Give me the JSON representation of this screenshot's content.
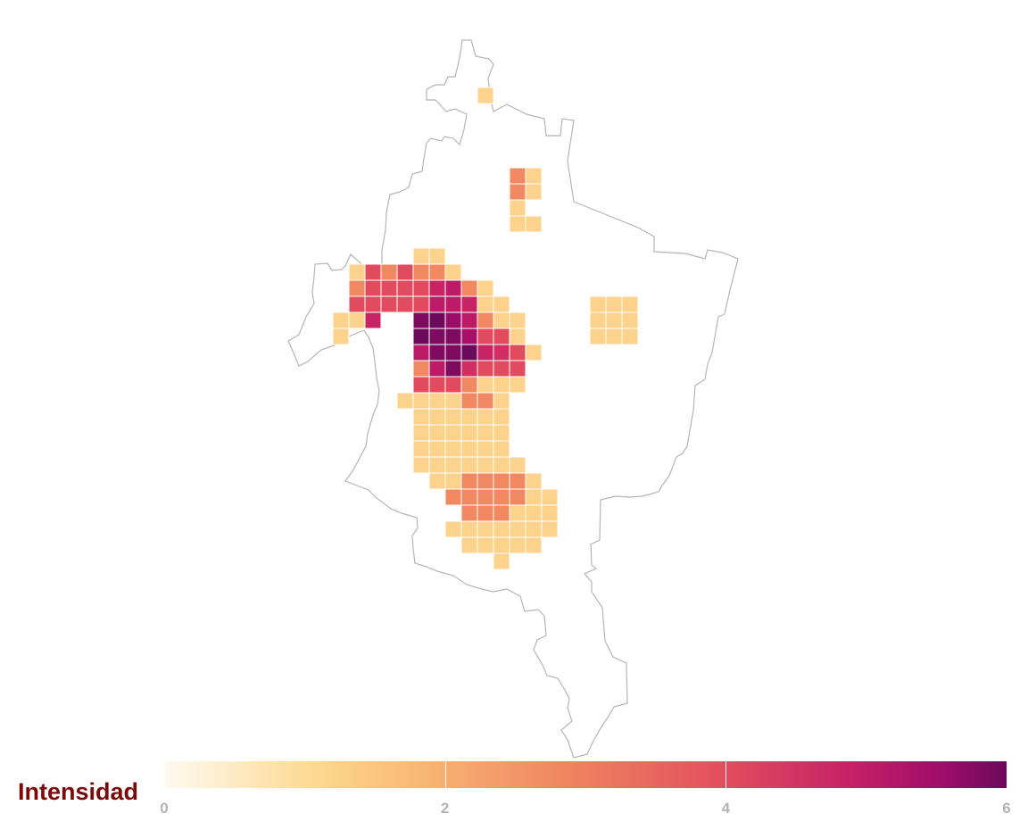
{
  "legend": {
    "title": "Intensidad",
    "min": 0,
    "max": 6,
    "ticks": [
      {
        "value": 0,
        "label": "0"
      },
      {
        "value": 2,
        "label": "2"
      },
      {
        "value": 4,
        "label": "4"
      },
      {
        "value": 6,
        "label": "6"
      }
    ]
  },
  "colors": {
    "outline": "#b5b5b5",
    "scale": [
      "#fffaf0",
      "#fdd890",
      "#f8b575",
      "#ef8460",
      "#e24f5d",
      "#c51f66",
      "#a00d6a",
      "#6b0a5a"
    ]
  },
  "grid": {
    "rows": [
      {
        "row": 0,
        "cells": [
          [
            6,
            1
          ]
        ]
      },
      {
        "row": 5,
        "cells": [
          [
            8,
            2.5
          ],
          [
            9,
            1
          ]
        ]
      },
      {
        "row": 6,
        "cells": [
          [
            8,
            2.5
          ],
          [
            9,
            1
          ]
        ]
      },
      {
        "row": 7,
        "cells": [
          [
            8,
            1
          ]
        ]
      },
      {
        "row": 8,
        "cells": [
          [
            8,
            1
          ],
          [
            9,
            1
          ]
        ]
      },
      {
        "row": 10,
        "cells": [
          [
            2,
            1
          ],
          [
            3,
            1
          ]
        ]
      },
      {
        "row": 11,
        "cells": [
          [
            -2,
            1
          ],
          [
            -1,
            3.5
          ],
          [
            0,
            2.5
          ],
          [
            1,
            3.5
          ],
          [
            2,
            2.5
          ],
          [
            3,
            2.5
          ],
          [
            4,
            1
          ]
        ]
      },
      {
        "row": 12,
        "cells": [
          [
            -2,
            2.5
          ],
          [
            -1,
            3.5
          ],
          [
            0,
            3.5
          ],
          [
            1,
            3.5
          ],
          [
            2,
            3.5
          ],
          [
            3,
            4.2
          ],
          [
            4,
            4.5
          ],
          [
            5,
            2.5
          ],
          [
            6,
            1
          ]
        ]
      },
      {
        "row": 13,
        "cells": [
          [
            -2,
            3.5
          ],
          [
            -1,
            3.5
          ],
          [
            0,
            3.5
          ],
          [
            1,
            3.5
          ],
          [
            2,
            3.5
          ],
          [
            3,
            4.5
          ],
          [
            4,
            4.5
          ],
          [
            5,
            4.2
          ],
          [
            6,
            1
          ],
          [
            7,
            1
          ],
          [
            13,
            1
          ],
          [
            14,
            1
          ],
          [
            15,
            1
          ]
        ]
      },
      {
        "row": 14,
        "cells": [
          [
            -3,
            1
          ],
          [
            -2,
            1
          ],
          [
            -1,
            4.2
          ],
          [
            2,
            5.7
          ],
          [
            3,
            6
          ],
          [
            4,
            5.2
          ],
          [
            5,
            4.5
          ],
          [
            6,
            2.5
          ],
          [
            7,
            1
          ],
          [
            8,
            1
          ],
          [
            13,
            1
          ],
          [
            14,
            1
          ],
          [
            15,
            1
          ]
        ]
      },
      {
        "row": 15,
        "cells": [
          [
            -3,
            1
          ],
          [
            2,
            6
          ],
          [
            3,
            5.7
          ],
          [
            4,
            5.7
          ],
          [
            5,
            5
          ],
          [
            6,
            3.5
          ],
          [
            7,
            3.5
          ],
          [
            8,
            1
          ],
          [
            13,
            1
          ],
          [
            14,
            1
          ],
          [
            15,
            1
          ]
        ]
      },
      {
        "row": 16,
        "cells": [
          [
            2,
            4.5
          ],
          [
            3,
            5.7
          ],
          [
            4,
            5.7
          ],
          [
            5,
            6
          ],
          [
            6,
            4.2
          ],
          [
            7,
            4
          ],
          [
            8,
            3.5
          ],
          [
            9,
            1
          ]
        ]
      },
      {
        "row": 17,
        "cells": [
          [
            2,
            2.5
          ],
          [
            3,
            4.5
          ],
          [
            4,
            5.7
          ],
          [
            5,
            4
          ],
          [
            6,
            3.5
          ],
          [
            7,
            3.5
          ],
          [
            8,
            3.5
          ]
        ]
      },
      {
        "row": 18,
        "cells": [
          [
            2,
            3.5
          ],
          [
            3,
            3.5
          ],
          [
            4,
            3.5
          ],
          [
            5,
            2.5
          ],
          [
            6,
            1
          ],
          [
            7,
            1
          ],
          [
            8,
            1
          ]
        ]
      },
      {
        "row": 19,
        "cells": [
          [
            1,
            1
          ],
          [
            2,
            1
          ],
          [
            3,
            1
          ],
          [
            4,
            1
          ],
          [
            5,
            2.5
          ],
          [
            6,
            2.5
          ],
          [
            7,
            1
          ]
        ]
      },
      {
        "row": 20,
        "cells": [
          [
            2,
            1
          ],
          [
            3,
            1
          ],
          [
            4,
            1
          ],
          [
            5,
            1
          ],
          [
            6,
            1
          ],
          [
            7,
            1
          ]
        ]
      },
      {
        "row": 21,
        "cells": [
          [
            2,
            1
          ],
          [
            3,
            1
          ],
          [
            4,
            1
          ],
          [
            5,
            1
          ],
          [
            6,
            1
          ],
          [
            7,
            1
          ]
        ]
      },
      {
        "row": 22,
        "cells": [
          [
            2,
            1
          ],
          [
            3,
            1
          ],
          [
            4,
            1
          ],
          [
            5,
            1
          ],
          [
            6,
            1
          ],
          [
            7,
            1
          ]
        ]
      },
      {
        "row": 23,
        "cells": [
          [
            2,
            1
          ],
          [
            3,
            1
          ],
          [
            4,
            1
          ],
          [
            5,
            1
          ],
          [
            6,
            1
          ],
          [
            7,
            1
          ],
          [
            8,
            1
          ]
        ]
      },
      {
        "row": 24,
        "cells": [
          [
            3,
            1
          ],
          [
            4,
            1
          ],
          [
            5,
            2.5
          ],
          [
            6,
            2.5
          ],
          [
            7,
            2.5
          ],
          [
            8,
            2.5
          ],
          [
            9,
            1
          ]
        ]
      },
      {
        "row": 25,
        "cells": [
          [
            4,
            2.5
          ],
          [
            5,
            2.5
          ],
          [
            6,
            2.5
          ],
          [
            7,
            2.5
          ],
          [
            8,
            2.5
          ],
          [
            9,
            1
          ],
          [
            10,
            1
          ]
        ]
      },
      {
        "row": 26,
        "cells": [
          [
            5,
            2.5
          ],
          [
            6,
            2.5
          ],
          [
            7,
            2.5
          ],
          [
            8,
            1
          ],
          [
            9,
            1
          ],
          [
            10,
            1
          ]
        ]
      },
      {
        "row": 27,
        "cells": [
          [
            4,
            1
          ],
          [
            5,
            1
          ],
          [
            6,
            1
          ],
          [
            7,
            1
          ],
          [
            8,
            1
          ],
          [
            9,
            1
          ],
          [
            10,
            1
          ]
        ]
      },
      {
        "row": 28,
        "cells": [
          [
            5,
            1
          ],
          [
            6,
            1
          ],
          [
            7,
            1
          ],
          [
            8,
            1
          ],
          [
            9,
            1
          ]
        ]
      },
      {
        "row": 29,
        "cells": [
          [
            7,
            1
          ]
        ]
      }
    ]
  }
}
